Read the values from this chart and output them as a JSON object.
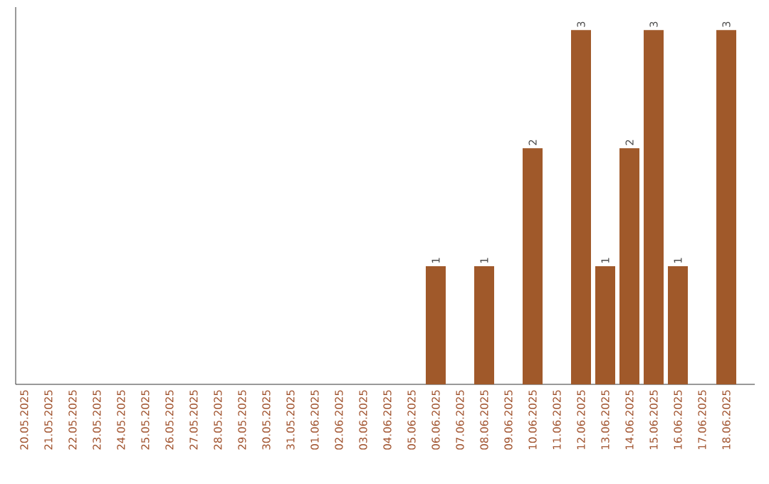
{
  "chart_data": {
    "type": "bar",
    "categories": [
      "20.05.2025",
      "21.05.2025",
      "22.05.2025",
      "23.05.2025",
      "24.05.2025",
      "25.05.2025",
      "26.05.2025",
      "27.05.2025",
      "28.05.2025",
      "29.05.2025",
      "30.05.2025",
      "31.05.2025",
      "01.06.2025",
      "02.06.2025",
      "03.06.2025",
      "04.06.2025",
      "05.06.2025",
      "06.06.2025",
      "07.06.2025",
      "08.06.2025",
      "09.06.2025",
      "10.06.2025",
      "11.06.2025",
      "12.06.2025",
      "13.06.2025",
      "14.06.2025",
      "15.06.2025",
      "16.06.2025",
      "17.06.2025",
      "18.06.2025"
    ],
    "values": [
      null,
      null,
      null,
      null,
      null,
      null,
      null,
      null,
      null,
      null,
      null,
      null,
      null,
      null,
      null,
      null,
      null,
      1,
      null,
      1,
      null,
      2,
      null,
      3,
      1,
      2,
      3,
      1,
      null,
      3
    ],
    "data_labels": true,
    "color": "#a0592a"
  }
}
